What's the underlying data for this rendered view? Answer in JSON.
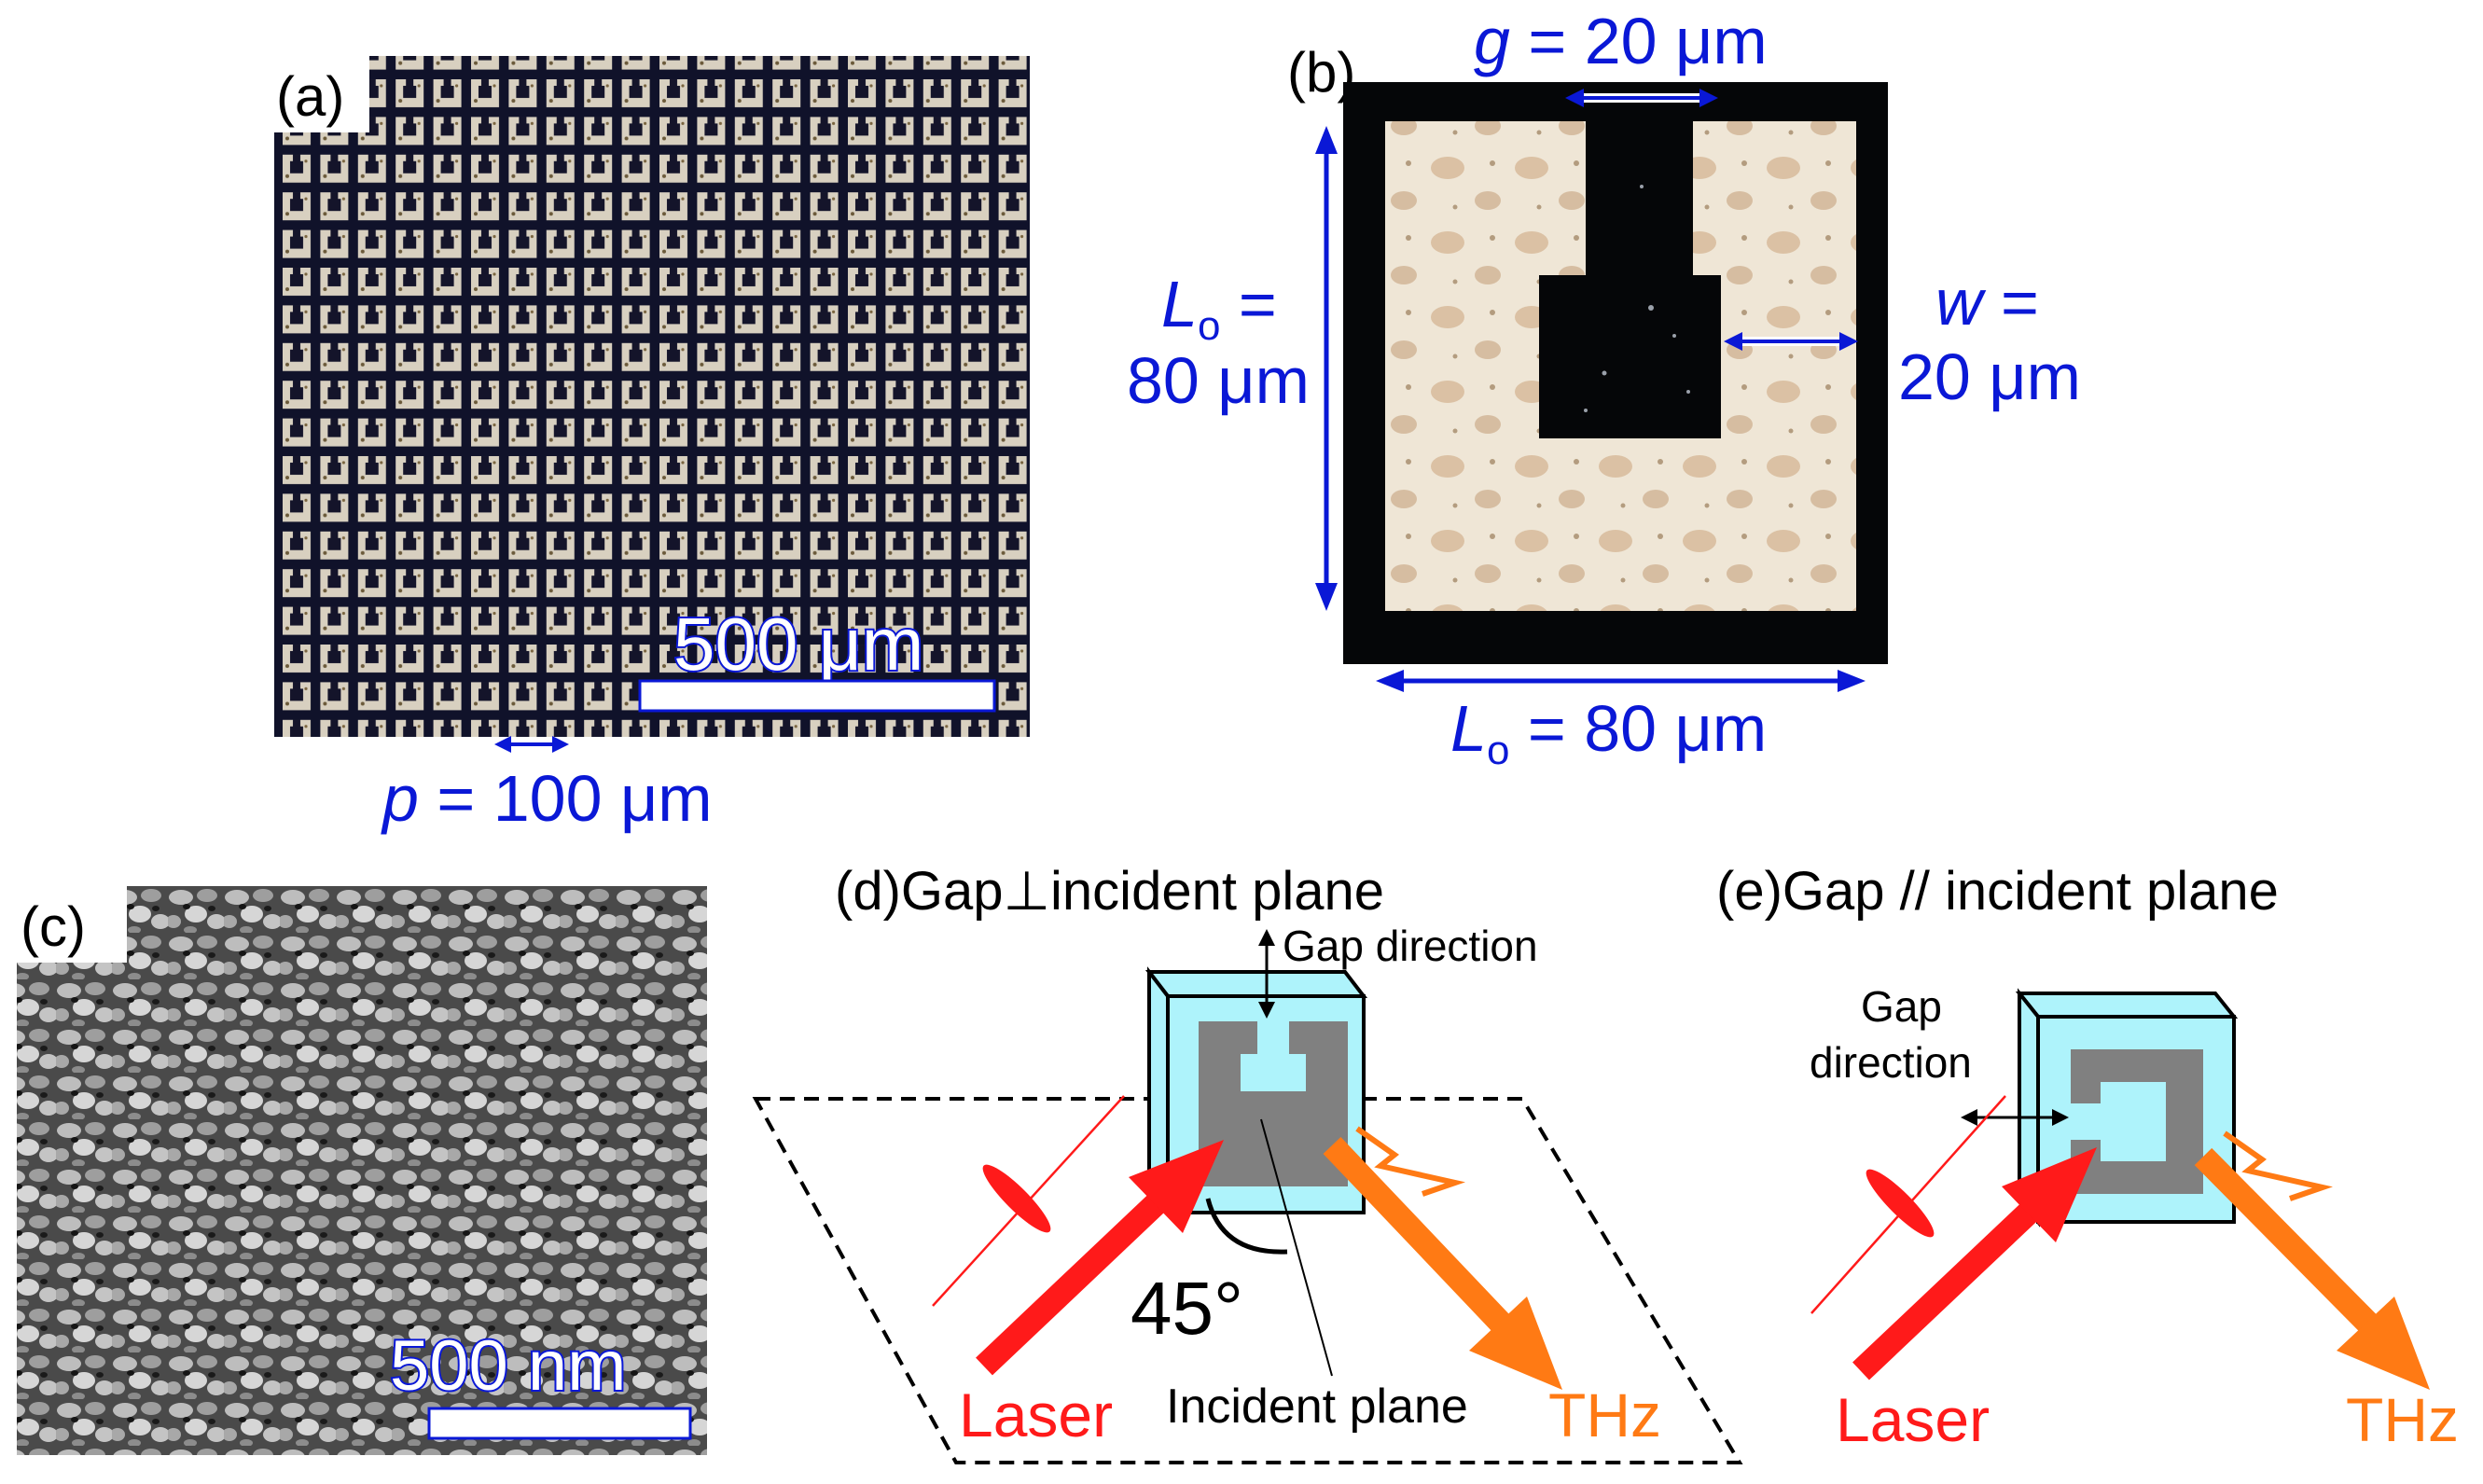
{
  "panels": {
    "a": {
      "label": "(a)",
      "scale_bar": "500 μm",
      "pitch_var": "p",
      "pitch_value": " = 100 μm"
    },
    "b": {
      "label": "(b)",
      "gap_var": "g",
      "gap_value": " = 20 μm",
      "height_var": "L",
      "height_sub": "o",
      "height_eq": " =",
      "height_value": "80 μm",
      "width_var": "w",
      "width_eq": " =",
      "width_value": "20 μm",
      "bottom_var": "L",
      "bottom_sub": "o",
      "bottom_value": " = 80 μm"
    },
    "c": {
      "label": "(c)",
      "scale_bar": "500 nm"
    },
    "d": {
      "title": "(d)Gap⊥incident plane",
      "gap_direction": "Gap direction",
      "angle": "45°",
      "incident_plane": "Incident plane",
      "laser": "Laser",
      "thz": "THz"
    },
    "e": {
      "title": "(e)Gap // incident plane",
      "gap_direction_line1": "Gap",
      "gap_direction_line2": "direction",
      "laser": "Laser",
      "thz": "THz"
    }
  },
  "colors": {
    "annotation_blue": "#0a18d6",
    "laser_red": "#ff1a1a",
    "thz_orange": "#ff7a14",
    "cube_cyan": "#aef3fb",
    "metal_gray": "#808080"
  }
}
